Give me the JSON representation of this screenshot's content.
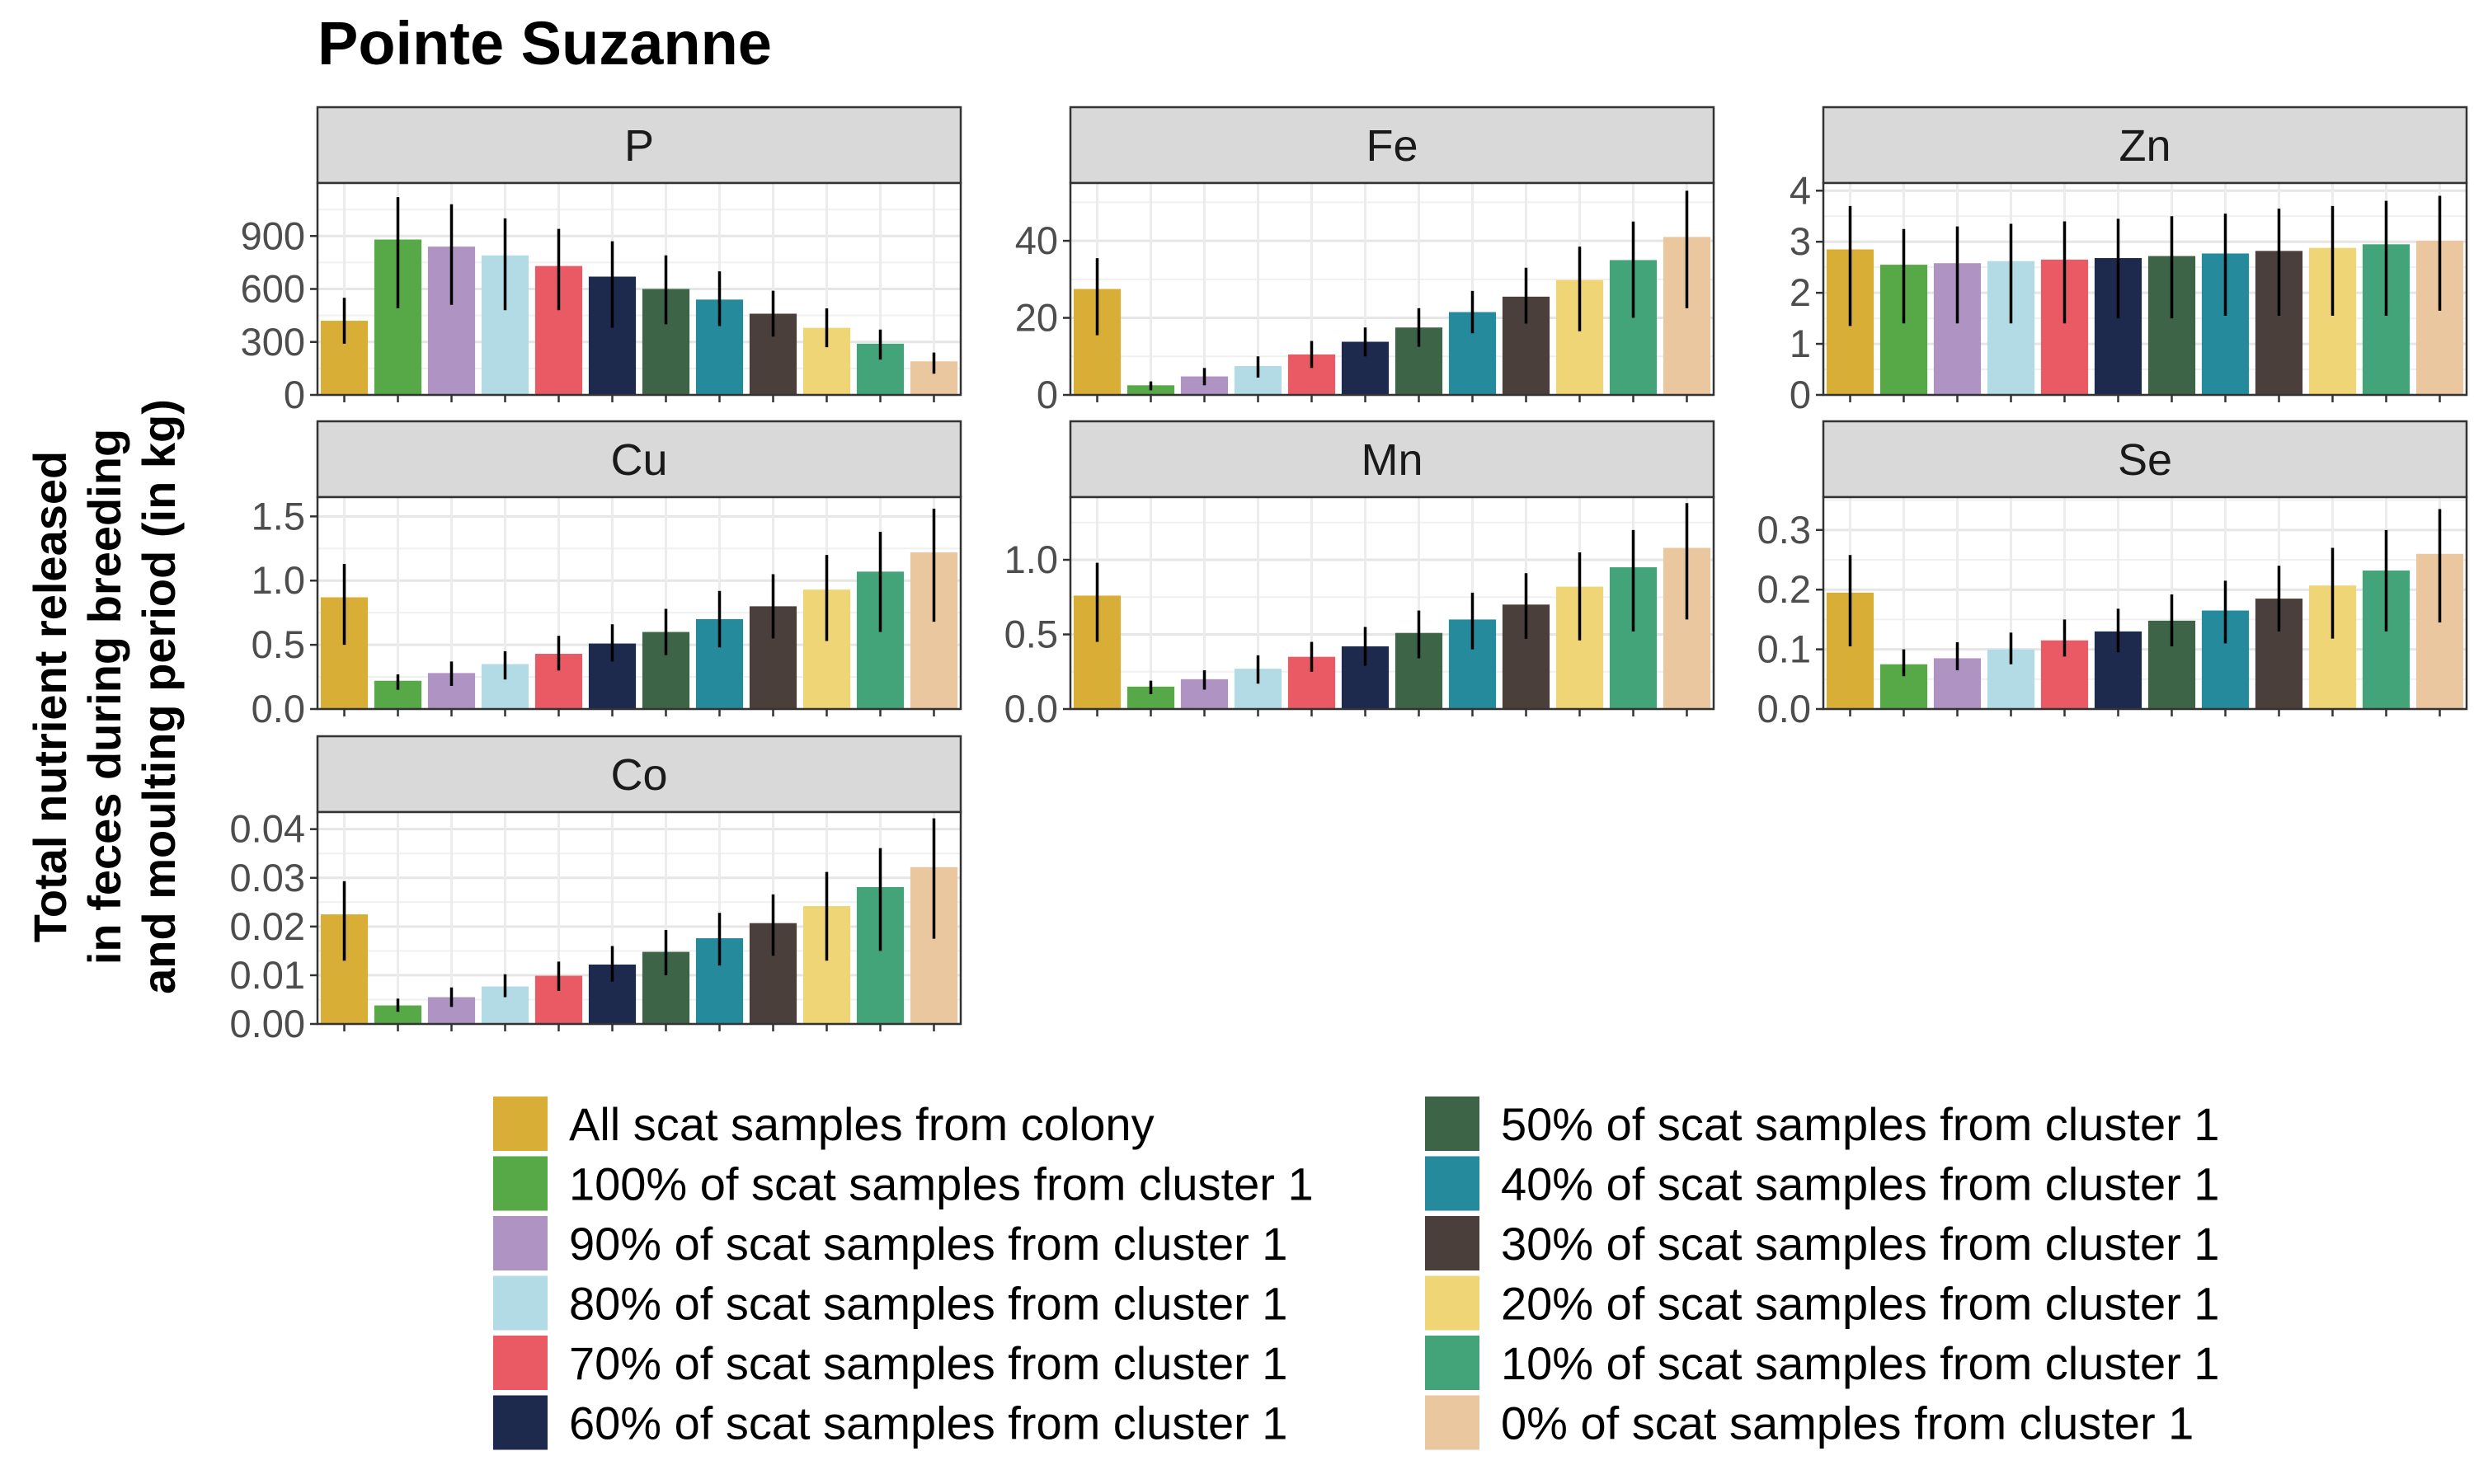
{
  "chart_data": {
    "type": "bar",
    "title": "Pointe Suzanne",
    "ylabel_lines": [
      "Total nutrient released",
      "in feces during breeding",
      "and moulting period (in kg)"
    ],
    "xlabel": "",
    "grid": true,
    "legend_position": "bottom",
    "categories": [
      "All scat samples from colony",
      "100% of scat samples from cluster 1",
      "90% of scat samples from cluster 1",
      "80% of scat samples from cluster 1",
      "70% of scat samples from cluster 1",
      "60% of scat samples from cluster 1",
      "50% of scat samples from cluster 1",
      "40% of scat samples from cluster 1",
      "30% of scat samples from cluster 1",
      "20% of scat samples from cluster 1",
      "10% of scat samples from cluster 1",
      "0% of scat samples from cluster 1"
    ],
    "colors": [
      "#D9AE36",
      "#57A846",
      "#AE93C3",
      "#B3DBE5",
      "#EA5A64",
      "#1E2A4D",
      "#3E6448",
      "#258B9C",
      "#4B3F3B",
      "#F0D576",
      "#42A478",
      "#EBC7A0"
    ],
    "panels": [
      {
        "name": "P",
        "ylim": [
          0,
          1200
        ],
        "ticks": [
          0,
          300,
          600,
          900
        ],
        "tick_labels": [
          "0",
          "300",
          "600",
          "900"
        ],
        "values": [
          420,
          880,
          840,
          790,
          730,
          670,
          600,
          540,
          460,
          380,
          290,
          190
        ],
        "err_low": [
          290,
          490,
          510,
          480,
          480,
          380,
          400,
          390,
          330,
          270,
          200,
          120
        ],
        "err_high": [
          550,
          1120,
          1080,
          1000,
          940,
          870,
          790,
          700,
          590,
          490,
          370,
          240
        ]
      },
      {
        "name": "Fe",
        "ylim": [
          0,
          55
        ],
        "ticks": [
          0,
          20,
          40
        ],
        "tick_labels": [
          "0",
          "20",
          "40"
        ],
        "values": [
          27.5,
          2.5,
          4.8,
          7.5,
          10.5,
          13.8,
          17.5,
          21.5,
          25.5,
          29.8,
          35,
          41
        ],
        "err_low": [
          15.5,
          1.2,
          2.5,
          4.5,
          7.0,
          10.0,
          12.5,
          16.0,
          18.5,
          16.5,
          20.0,
          22.5
        ],
        "err_high": [
          35.5,
          3.5,
          7.0,
          10.0,
          14.0,
          17.5,
          22.5,
          27.0,
          33.0,
          38.5,
          45.0,
          53.0
        ]
      },
      {
        "name": "Zn",
        "ylim": [
          0,
          4.15
        ],
        "ticks": [
          0,
          1,
          2,
          3,
          4
        ],
        "tick_labels": [
          "0",
          "1",
          "2",
          "3",
          "4"
        ],
        "values": [
          2.85,
          2.55,
          2.58,
          2.62,
          2.65,
          2.68,
          2.72,
          2.77,
          2.82,
          2.88,
          2.95,
          3.02
        ],
        "err_low": [
          1.35,
          1.4,
          1.4,
          1.4,
          1.4,
          1.5,
          1.5,
          1.55,
          1.55,
          1.55,
          1.55,
          1.65
        ],
        "err_high": [
          3.7,
          3.25,
          3.3,
          3.35,
          3.4,
          3.45,
          3.5,
          3.55,
          3.65,
          3.7,
          3.8,
          3.9
        ]
      },
      {
        "name": "Cu",
        "ylim": [
          0,
          1.65
        ],
        "ticks": [
          0,
          0.5,
          1.0,
          1.5
        ],
        "tick_labels": [
          "0.0",
          "0.5",
          "1.0",
          "1.5"
        ],
        "values": [
          0.87,
          0.22,
          0.28,
          0.35,
          0.43,
          0.51,
          0.6,
          0.7,
          0.8,
          0.93,
          1.07,
          1.22
        ],
        "err_low": [
          0.5,
          0.15,
          0.18,
          0.23,
          0.3,
          0.37,
          0.42,
          0.48,
          0.55,
          0.53,
          0.6,
          0.68
        ],
        "err_high": [
          1.13,
          0.27,
          0.37,
          0.45,
          0.57,
          0.66,
          0.78,
          0.92,
          1.05,
          1.2,
          1.38,
          1.56
        ]
      },
      {
        "name": "Mn",
        "ylim": [
          0,
          1.42
        ],
        "ticks": [
          0,
          0.5,
          1.0
        ],
        "tick_labels": [
          "0.0",
          "0.5",
          "1.0"
        ],
        "values": [
          0.76,
          0.15,
          0.2,
          0.27,
          0.35,
          0.42,
          0.51,
          0.6,
          0.7,
          0.82,
          0.95,
          1.08
        ],
        "err_low": [
          0.45,
          0.1,
          0.13,
          0.17,
          0.25,
          0.29,
          0.34,
          0.4,
          0.47,
          0.46,
          0.52,
          0.6
        ],
        "err_high": [
          0.98,
          0.19,
          0.26,
          0.36,
          0.45,
          0.55,
          0.66,
          0.78,
          0.91,
          1.05,
          1.2,
          1.38
        ]
      },
      {
        "name": "Se",
        "ylim": [
          0,
          0.355
        ],
        "ticks": [
          0,
          0.1,
          0.2,
          0.3
        ],
        "tick_labels": [
          "0.0",
          "0.1",
          "0.2",
          "0.3"
        ],
        "values": [
          0.195,
          0.075,
          0.085,
          0.1,
          0.115,
          0.13,
          0.148,
          0.165,
          0.185,
          0.207,
          0.232,
          0.26
        ],
        "err_low": [
          0.105,
          0.055,
          0.065,
          0.075,
          0.088,
          0.095,
          0.105,
          0.11,
          0.13,
          0.118,
          0.13,
          0.145
        ],
        "err_high": [
          0.258,
          0.1,
          0.112,
          0.128,
          0.15,
          0.168,
          0.192,
          0.215,
          0.24,
          0.27,
          0.3,
          0.335
        ]
      },
      {
        "name": "Co",
        "ylim": [
          0,
          0.0435
        ],
        "ticks": [
          0,
          0.01,
          0.02,
          0.03,
          0.04
        ],
        "tick_labels": [
          "0.00",
          "0.01",
          "0.02",
          "0.03",
          "0.04"
        ],
        "values": [
          0.0225,
          0.0038,
          0.0055,
          0.0077,
          0.0099,
          0.0122,
          0.0148,
          0.0176,
          0.0207,
          0.0242,
          0.0281,
          0.0322
        ],
        "err_low": [
          0.013,
          0.0025,
          0.0035,
          0.0055,
          0.0068,
          0.0087,
          0.01,
          0.012,
          0.014,
          0.013,
          0.015,
          0.0175
        ],
        "err_high": [
          0.0293,
          0.0052,
          0.0075,
          0.0102,
          0.0128,
          0.016,
          0.0193,
          0.0228,
          0.0266,
          0.0312,
          0.0361,
          0.0422
        ]
      }
    ]
  }
}
